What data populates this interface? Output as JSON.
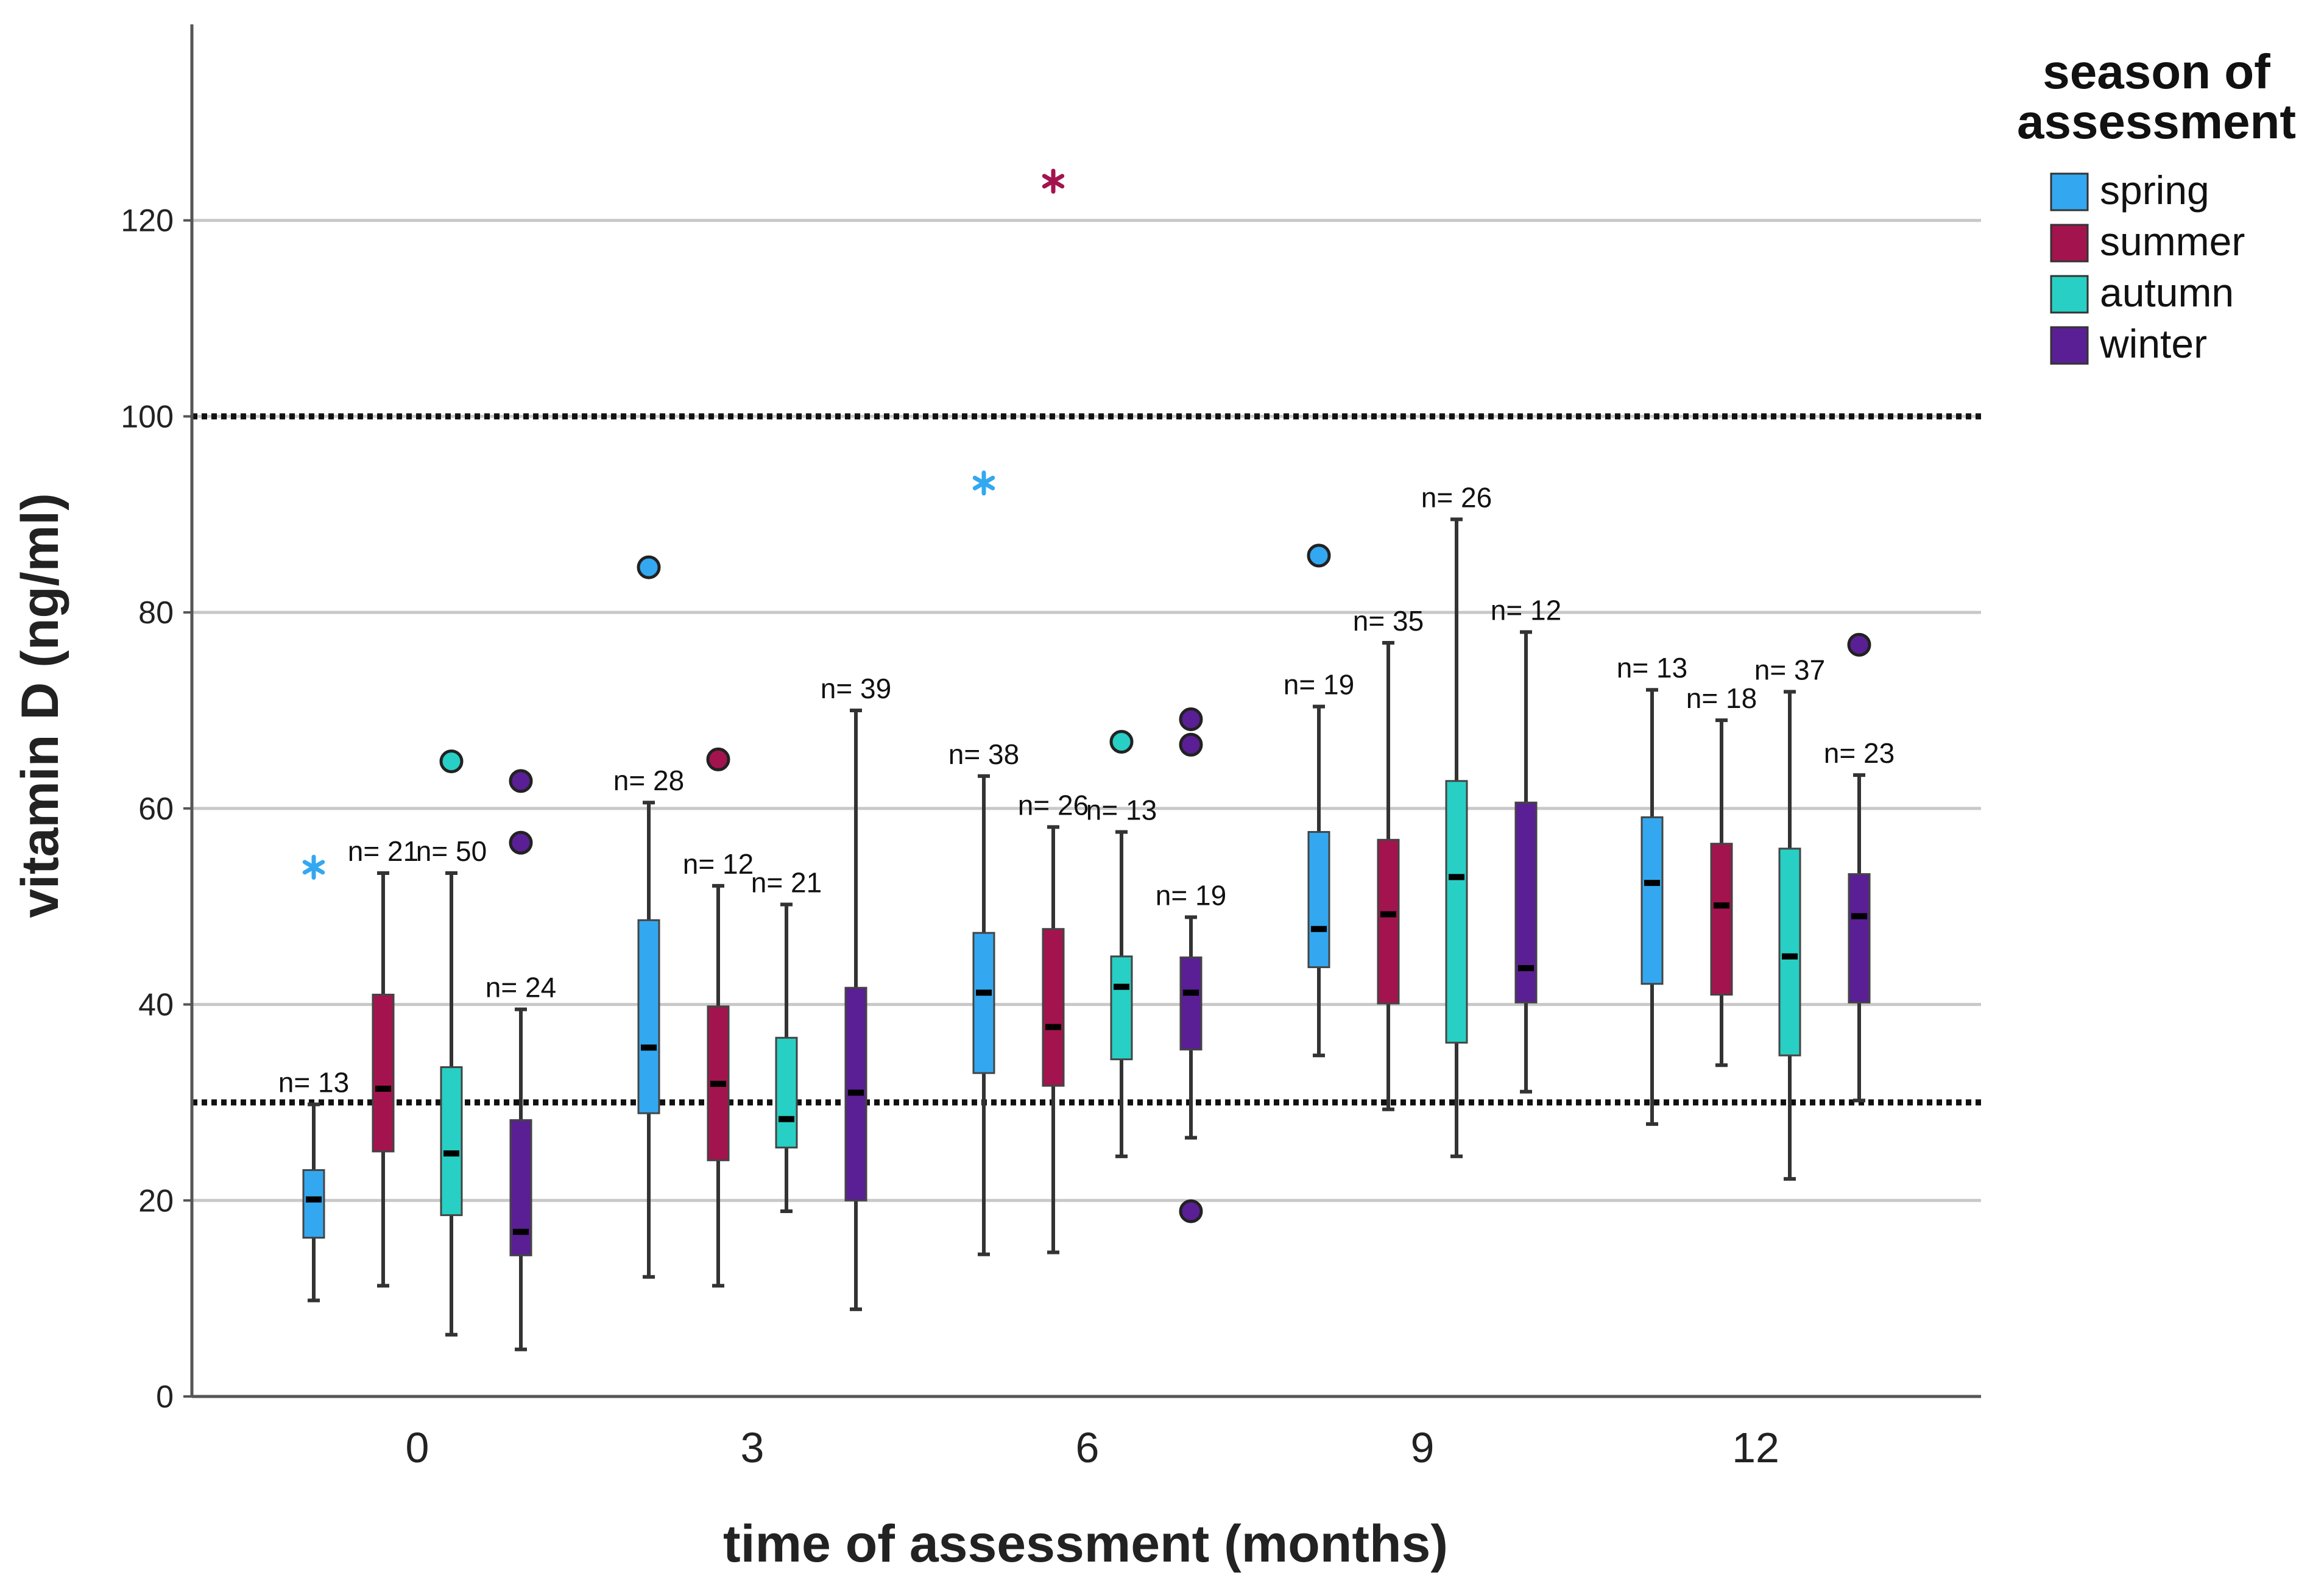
{
  "chart_data": {
    "type": "boxplot",
    "title": "",
    "xlabel": "time of assessment (months)",
    "ylabel": "vitamin D (ng/ml)",
    "ylim": [
      0,
      140
    ],
    "yticks": [
      0,
      20,
      40,
      60,
      80,
      100,
      120
    ],
    "categories": [
      "0",
      "3",
      "6",
      "9",
      "12"
    ],
    "grid": true,
    "reference_lines": [
      100,
      30
    ],
    "legend": {
      "title_lines": [
        "season of",
        "assessment"
      ],
      "placement": "right"
    },
    "series": [
      {
        "name": "spring",
        "color": "#33a8f0",
        "boxes": [
          {
            "min": 9.8,
            "q1": 16.2,
            "median": 20.1,
            "q3": 23.1,
            "max": 29.8,
            "n_label": "n= 13",
            "outliers": [],
            "extremes": [
              54.0
            ]
          },
          {
            "min": 12.2,
            "q1": 28.9,
            "median": 35.6,
            "q3": 48.6,
            "max": 60.6,
            "n_label": "n= 28",
            "outliers": [
              84.6
            ],
            "extremes": []
          },
          {
            "min": 14.5,
            "q1": 33.0,
            "median": 41.2,
            "q3": 47.3,
            "max": 63.3,
            "n_label": "n= 38",
            "outliers": [],
            "extremes": [
              93.2
            ]
          },
          {
            "min": 34.8,
            "q1": 43.8,
            "median": 47.7,
            "q3": 57.6,
            "max": 70.4,
            "n_label": "n= 19",
            "outliers": [
              85.8
            ],
            "extremes": []
          },
          {
            "min": 27.8,
            "q1": 42.1,
            "median": 52.4,
            "q3": 59.1,
            "max": 72.1,
            "n_label": "n= 13",
            "outliers": [],
            "extremes": []
          }
        ]
      },
      {
        "name": "summer",
        "color": "#a3144e",
        "boxes": [
          {
            "min": 11.3,
            "q1": 25.0,
            "median": 31.4,
            "q3": 41.0,
            "max": 53.4,
            "n_label": "n= 21",
            "outliers": [],
            "extremes": []
          },
          {
            "min": 11.3,
            "q1": 24.1,
            "median": 31.9,
            "q3": 39.8,
            "max": 52.1,
            "n_label": "n= 12",
            "outliers": [
              65.0
            ],
            "extremes": []
          },
          {
            "min": 14.7,
            "q1": 31.7,
            "median": 37.7,
            "q3": 47.7,
            "max": 58.1,
            "n_label": "n= 26",
            "outliers": [],
            "extremes": [
              124.0
            ]
          },
          {
            "min": 29.3,
            "q1": 40.1,
            "median": 49.2,
            "q3": 56.8,
            "max": 76.9,
            "n_label": "n= 35",
            "outliers": [],
            "extremes": []
          },
          {
            "min": 33.8,
            "q1": 41.0,
            "median": 50.1,
            "q3": 56.4,
            "max": 69.0,
            "n_label": "n= 18",
            "outliers": [],
            "extremes": []
          }
        ]
      },
      {
        "name": "autumn",
        "color": "#28cfc4",
        "boxes": [
          {
            "min": 6.3,
            "q1": 18.5,
            "median": 24.8,
            "q3": 33.6,
            "max": 53.4,
            "n_label": "n= 50",
            "outliers": [
              64.8
            ],
            "extremes": []
          },
          {
            "min": 18.9,
            "q1": 25.4,
            "median": 28.3,
            "q3": 36.6,
            "max": 50.2,
            "n_label": "n= 21",
            "outliers": [],
            "extremes": []
          },
          {
            "min": 24.5,
            "q1": 34.4,
            "median": 41.8,
            "q3": 44.9,
            "max": 57.6,
            "n_label": "n= 13",
            "outliers": [
              66.8
            ],
            "extremes": []
          },
          {
            "min": 24.5,
            "q1": 36.1,
            "median": 53.0,
            "q3": 62.8,
            "max": 89.5,
            "n_label": "n= 26",
            "outliers": [],
            "extremes": []
          },
          {
            "min": 22.2,
            "q1": 34.8,
            "median": 44.9,
            "q3": 55.9,
            "max": 71.9,
            "n_label": "n= 37",
            "outliers": [],
            "extremes": []
          }
        ]
      },
      {
        "name": "winter",
        "color": "#5a1f94",
        "boxes": [
          {
            "min": 4.8,
            "q1": 14.4,
            "median": 16.8,
            "q3": 28.2,
            "max": 39.5,
            "n_label": "n= 24",
            "outliers": [
              62.8,
              56.5
            ],
            "extremes": []
          },
          {
            "min": 8.9,
            "q1": 20.0,
            "median": 31.0,
            "q3": 41.7,
            "max": 70.0,
            "n_label": "n= 39",
            "outliers": [],
            "extremes": []
          },
          {
            "min": 26.4,
            "q1": 35.4,
            "median": 41.2,
            "q3": 44.8,
            "max": 48.9,
            "n_label": "n= 19",
            "outliers": [
              69.1,
              66.5,
              18.9
            ],
            "extremes": []
          },
          {
            "min": 31.1,
            "q1": 40.2,
            "median": 43.7,
            "q3": 60.6,
            "max": 78.0,
            "n_label": "n= 12",
            "outliers": [],
            "extremes": []
          },
          {
            "min": 30.2,
            "q1": 40.2,
            "median": 49.0,
            "q3": 53.3,
            "max": 63.4,
            "n_label": "n= 23",
            "outliers": [
              76.7
            ],
            "extremes": []
          }
        ]
      }
    ]
  }
}
